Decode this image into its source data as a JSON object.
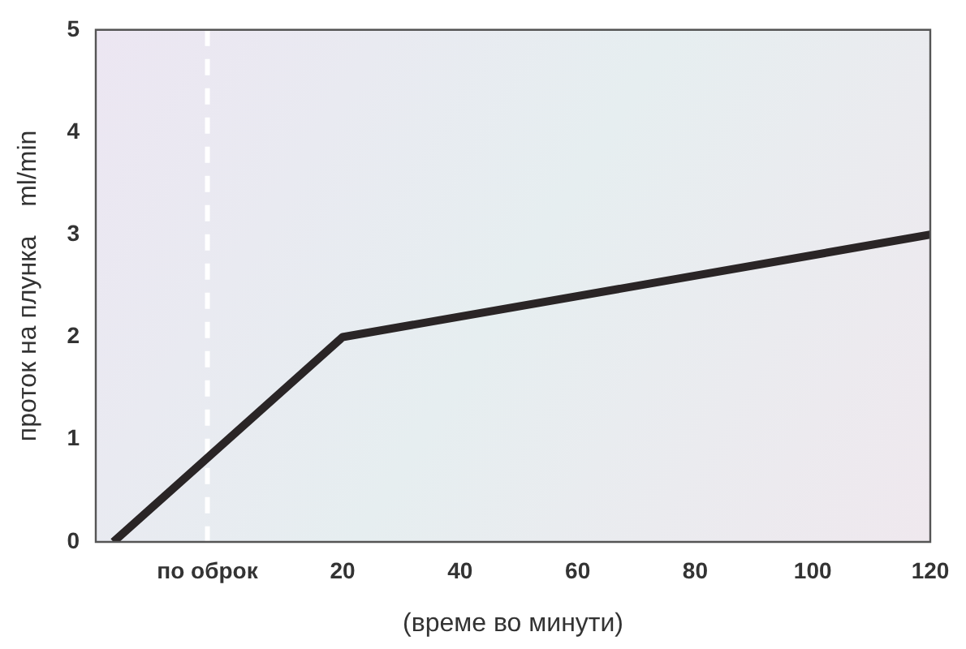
{
  "chart_data": {
    "type": "line",
    "xlabel": "(време во минути)",
    "ylabel": "проток на плунка    ml/min",
    "x": [
      -19,
      20,
      120
    ],
    "series": [
      {
        "color": "#2a2526",
        "values": [
          0,
          2,
          3
        ]
      }
    ],
    "xlim": [
      -22,
      120
    ],
    "xticks": [
      {
        "value": -3,
        "label": "по оброк"
      },
      20,
      40,
      60,
      80,
      100,
      120
    ],
    "ylim": [
      0,
      5
    ],
    "yticks": [
      0,
      1,
      2,
      3,
      4,
      5
    ],
    "ref_lines": [
      {
        "axis": "x",
        "value": -3,
        "color": "#ffffff",
        "line_style": "dashed"
      }
    ],
    "grid": false,
    "legend": false,
    "marker": "none",
    "line_style": "solid"
  }
}
